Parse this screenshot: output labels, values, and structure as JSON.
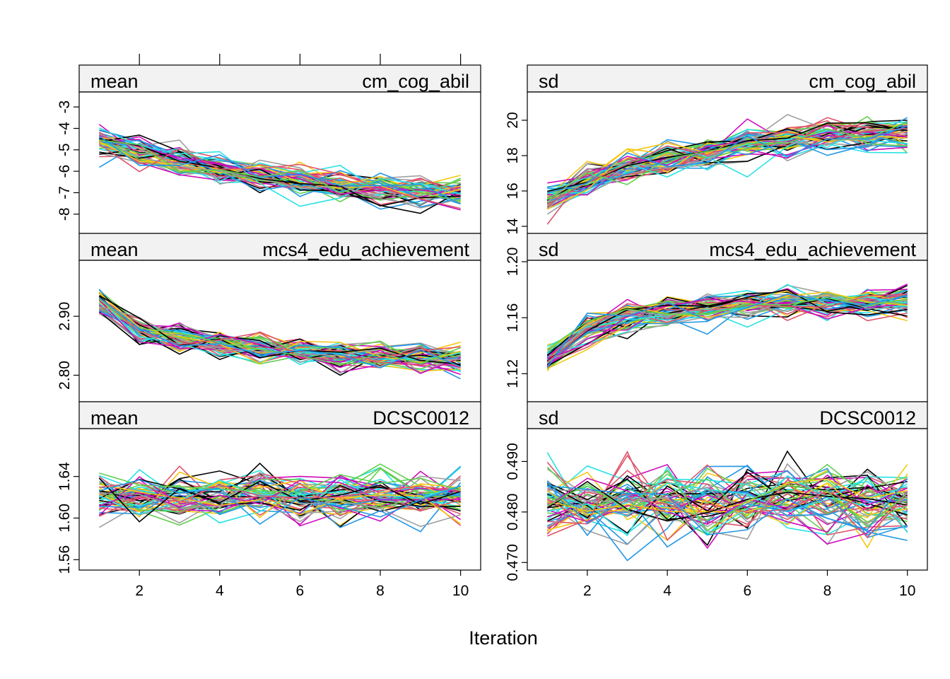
{
  "x_axis_title": "Iteration",
  "chart_data": [
    {
      "type": "line",
      "panel": "mean-cm_cog_abil",
      "stat": "mean",
      "variable": "cm_cog_abil",
      "x": [
        1,
        2,
        3,
        4,
        5,
        6,
        7,
        8,
        9,
        10
      ],
      "xticks": [
        2,
        4,
        6,
        8,
        10
      ],
      "xlim": [
        0.5,
        10.5
      ],
      "ylim": [
        -8.9,
        -2.3
      ],
      "yticks": [
        -8,
        -7,
        -6,
        -5,
        -4,
        -3
      ],
      "ytick_labels": [
        "-8",
        "-7",
        "-6",
        "-5",
        "-4",
        "-3"
      ],
      "n_chains": 60,
      "trend": [
        -4.6,
        -5.1,
        -5.5,
        -5.9,
        -6.2,
        -6.45,
        -6.7,
        -6.85,
        -6.95,
        -7.0
      ],
      "spread": 0.35
    },
    {
      "type": "line",
      "panel": "sd-cm_cog_abil",
      "stat": "sd",
      "variable": "cm_cog_abil",
      "x": [
        1,
        2,
        3,
        4,
        5,
        6,
        7,
        8,
        9,
        10
      ],
      "xticks": [
        2,
        4,
        6,
        8,
        10
      ],
      "xlim": [
        0.5,
        10.5
      ],
      "ylim": [
        13.6,
        21.6
      ],
      "yticks": [
        14,
        16,
        18,
        20
      ],
      "ytick_labels": [
        "14",
        "16",
        "18",
        "20"
      ],
      "n_chains": 60,
      "trend": [
        15.4,
        16.6,
        17.3,
        17.8,
        18.2,
        18.6,
        18.9,
        19.1,
        19.2,
        19.3
      ],
      "spread": 0.45
    },
    {
      "type": "line",
      "panel": "mean-mcs4_edu_achievement",
      "stat": "mean",
      "variable": "mcs4_edu_achievement",
      "x": [
        1,
        2,
        3,
        4,
        5,
        6,
        7,
        8,
        9,
        10
      ],
      "xticks": [
        2,
        4,
        6,
        8,
        10
      ],
      "xlim": [
        0.5,
        10.5
      ],
      "ylim": [
        2.755,
        2.995
      ],
      "yticks": [
        2.8,
        2.9
      ],
      "ytick_labels": [
        "2.80",
        "2.90"
      ],
      "n_chains": 60,
      "trend": [
        2.925,
        2.875,
        2.86,
        2.85,
        2.845,
        2.84,
        2.835,
        2.832,
        2.83,
        2.828
      ],
      "spread": 0.012
    },
    {
      "type": "line",
      "panel": "sd-mcs4_edu_achievement",
      "stat": "sd",
      "variable": "mcs4_edu_achievement",
      "x": [
        1,
        2,
        3,
        4,
        5,
        6,
        7,
        8,
        9,
        10
      ],
      "xticks": [
        2,
        4,
        6,
        8,
        10
      ],
      "xlim": [
        0.5,
        10.5
      ],
      "ylim": [
        1.1,
        1.201
      ],
      "yticks": [
        1.12,
        1.16,
        1.2
      ],
      "ytick_labels": [
        "1.12",
        "1.16",
        "1.20"
      ],
      "n_chains": 60,
      "trend": [
        1.13,
        1.152,
        1.16,
        1.164,
        1.167,
        1.169,
        1.17,
        1.171,
        1.172,
        1.172
      ],
      "spread": 0.005
    },
    {
      "type": "line",
      "panel": "mean-DCSC0012",
      "stat": "mean",
      "variable": "DCSC0012",
      "x": [
        1,
        2,
        3,
        4,
        5,
        6,
        7,
        8,
        9,
        10
      ],
      "xticks": [
        2,
        4,
        6,
        8,
        10
      ],
      "xlim": [
        0.5,
        10.5
      ],
      "ylim": [
        1.55,
        1.686
      ],
      "yticks": [
        1.56,
        1.6,
        1.64
      ],
      "ytick_labels": [
        "1.56",
        "1.60",
        "1.64"
      ],
      "n_chains": 60,
      "trend": [
        1.62,
        1.62,
        1.62,
        1.62,
        1.62,
        1.62,
        1.62,
        1.62,
        1.62,
        1.62
      ],
      "spread": 0.011
    },
    {
      "type": "line",
      "panel": "sd-DCSC0012",
      "stat": "sd",
      "variable": "DCSC0012",
      "x": [
        1,
        2,
        3,
        4,
        5,
        6,
        7,
        8,
        9,
        10
      ],
      "xticks": [
        2,
        4,
        6,
        8,
        10
      ],
      "xlim": [
        0.5,
        10.5
      ],
      "ylim": [
        0.4685,
        0.4965
      ],
      "yticks": [
        0.47,
        0.48,
        0.49
      ],
      "ytick_labels": [
        "0.470",
        "0.480",
        "0.490"
      ],
      "n_chains": 60,
      "trend": [
        0.482,
        0.482,
        0.482,
        0.482,
        0.482,
        0.482,
        0.482,
        0.482,
        0.482,
        0.482
      ],
      "spread": 0.0035
    }
  ],
  "series_colors": [
    "#000000",
    "#DF536B",
    "#61D04F",
    "#2297E6",
    "#28E2E5",
    "#CD0BBC",
    "#F5C710",
    "#9E9E9E"
  ]
}
